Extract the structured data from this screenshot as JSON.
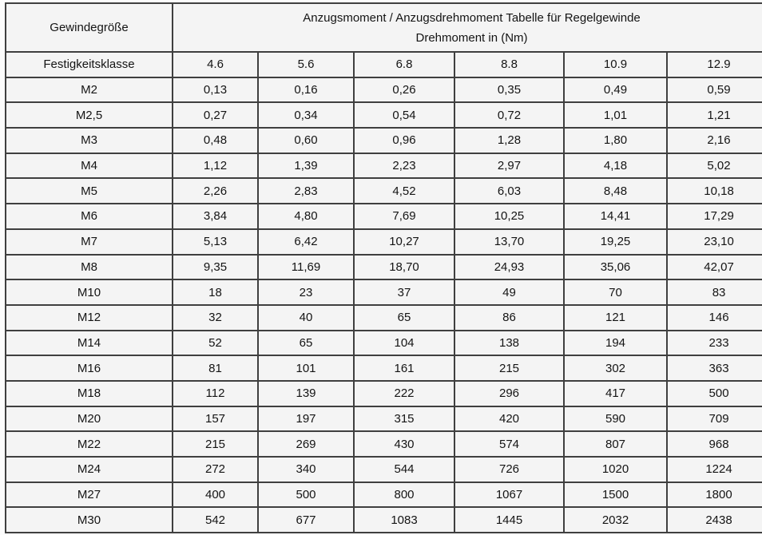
{
  "table": {
    "corner_header": "Gewindegröße",
    "title_line1": "Anzugsmoment / Anzugsdrehmoment Tabelle für Regelgewinde",
    "title_line2": "Drehmoment in (Nm)",
    "class_row_label": "Festigkeitsklasse",
    "classes": [
      "4.6",
      "5.6",
      "6.8",
      "8.8",
      "10.9",
      "12.9"
    ],
    "rows": [
      {
        "size": "M2",
        "values": [
          "0,13",
          "0,16",
          "0,26",
          "0,35",
          "0,49",
          "0,59"
        ]
      },
      {
        "size": "M2,5",
        "values": [
          "0,27",
          "0,34",
          "0,54",
          "0,72",
          "1,01",
          "1,21"
        ]
      },
      {
        "size": "M3",
        "values": [
          "0,48",
          "0,60",
          "0,96",
          "1,28",
          "1,80",
          "2,16"
        ]
      },
      {
        "size": "M4",
        "values": [
          "1,12",
          "1,39",
          "2,23",
          "2,97",
          "4,18",
          "5,02"
        ]
      },
      {
        "size": "M5",
        "values": [
          "2,26",
          "2,83",
          "4,52",
          "6,03",
          "8,48",
          "10,18"
        ]
      },
      {
        "size": "M6",
        "values": [
          "3,84",
          "4,80",
          "7,69",
          "10,25",
          "14,41",
          "17,29"
        ]
      },
      {
        "size": "M7",
        "values": [
          "5,13",
          "6,42",
          "10,27",
          "13,70",
          "19,25",
          "23,10"
        ]
      },
      {
        "size": "M8",
        "values": [
          "9,35",
          "11,69",
          "18,70",
          "24,93",
          "35,06",
          "42,07"
        ]
      },
      {
        "size": "M10",
        "values": [
          "18",
          "23",
          "37",
          "49",
          "70",
          "83"
        ]
      },
      {
        "size": "M12",
        "values": [
          "32",
          "40",
          "65",
          "86",
          "121",
          "146"
        ]
      },
      {
        "size": "M14",
        "values": [
          "52",
          "65",
          "104",
          "138",
          "194",
          "233"
        ]
      },
      {
        "size": "M16",
        "values": [
          "81",
          "101",
          "161",
          "215",
          "302",
          "363"
        ]
      },
      {
        "size": "M18",
        "values": [
          "112",
          "139",
          "222",
          "296",
          "417",
          "500"
        ]
      },
      {
        "size": "M20",
        "values": [
          "157",
          "197",
          "315",
          "420",
          "590",
          "709"
        ]
      },
      {
        "size": "M22",
        "values": [
          "215",
          "269",
          "430",
          "574",
          "807",
          "968"
        ]
      },
      {
        "size": "M24",
        "values": [
          "272",
          "340",
          "544",
          "726",
          "1020",
          "1224"
        ]
      },
      {
        "size": "M27",
        "values": [
          "400",
          "500",
          "800",
          "1067",
          "1500",
          "1800"
        ]
      },
      {
        "size": "M30",
        "values": [
          "542",
          "677",
          "1083",
          "1445",
          "2032",
          "2438"
        ]
      }
    ]
  },
  "colors": {
    "border": "#3f3f3f",
    "cell_background": "#f4f4f4",
    "page_background": "#fcfcfc",
    "text": "#141414"
  }
}
